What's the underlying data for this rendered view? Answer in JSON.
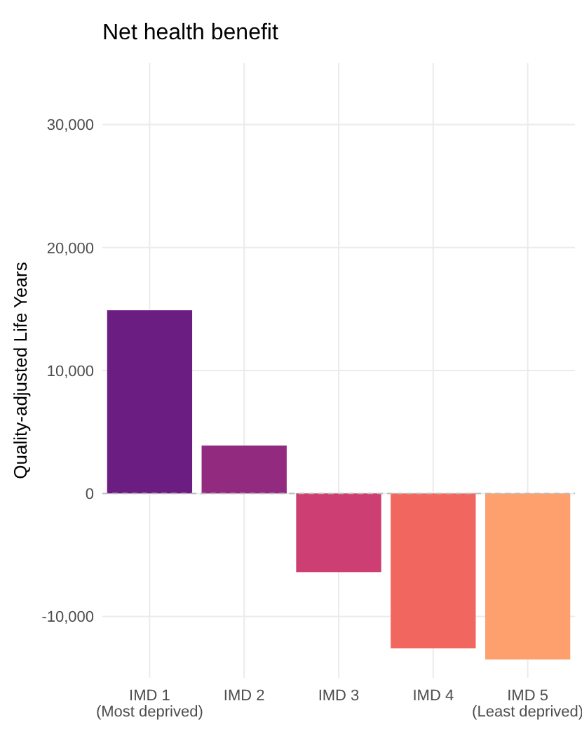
{
  "chart_data": {
    "type": "bar",
    "title": "Net health benefit",
    "ylabel": "Quality-adjusted Life Years",
    "categories": [
      "IMD 1\n(Most deprived)",
      "IMD 2",
      "IMD 3",
      "IMD 4",
      "IMD 5\n(Least deprived)"
    ],
    "values": [
      14900,
      3900,
      -6400,
      -12600,
      -13500
    ],
    "colors": [
      "#6b1d82",
      "#922a80",
      "#cd3e72",
      "#f1675f",
      "#fea06e"
    ],
    "ylim": [
      -15000,
      35000
    ],
    "yticks": [
      {
        "value": -10000,
        "label": "-10,000"
      },
      0,
      {
        "value": 10000,
        "label": "10,000"
      },
      {
        "value": 20000,
        "label": "20,000"
      },
      {
        "value": 30000,
        "label": "30,000"
      }
    ],
    "grid": true,
    "ref_lines": [
      {
        "axis": "y",
        "value": 0,
        "color": "#bbbbbb",
        "line_style": "dashed"
      }
    ]
  }
}
